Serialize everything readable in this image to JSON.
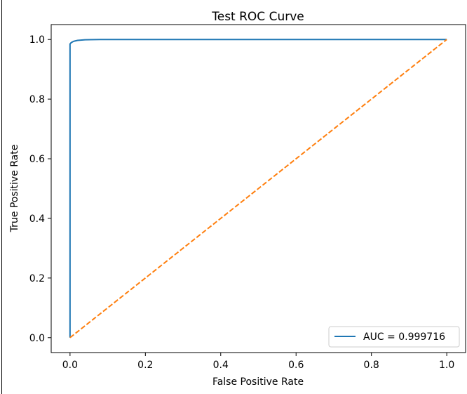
{
  "chart_data": {
    "type": "line",
    "title": "Test ROC Curve",
    "xlabel": "False Positive Rate",
    "ylabel": "True Positive Rate",
    "xlim": [
      -0.05,
      1.05
    ],
    "ylim": [
      -0.05,
      1.05
    ],
    "xticks": [
      "0.0",
      "0.2",
      "0.4",
      "0.6",
      "0.8",
      "1.0"
    ],
    "yticks": [
      "0.0",
      "0.2",
      "0.4",
      "0.6",
      "0.8",
      "1.0"
    ],
    "grid": false,
    "legend_position": "lower-right",
    "series": [
      {
        "name": "AUC = 0.999716",
        "color": "#1f77b4",
        "style": "solid",
        "x": [
          0.0,
          0.0,
          0.0,
          0.002,
          0.005,
          0.01,
          0.02,
          0.04,
          0.08,
          0.15,
          1.0
        ],
        "y": [
          0.0,
          0.5,
          0.985,
          0.988,
          0.991,
          0.994,
          0.997,
          0.999,
          1.0,
          1.0,
          1.0
        ]
      },
      {
        "name": "",
        "color": "#ff7f0e",
        "style": "dashed",
        "x": [
          0.0,
          1.0
        ],
        "y": [
          0.0,
          1.0
        ]
      }
    ]
  }
}
